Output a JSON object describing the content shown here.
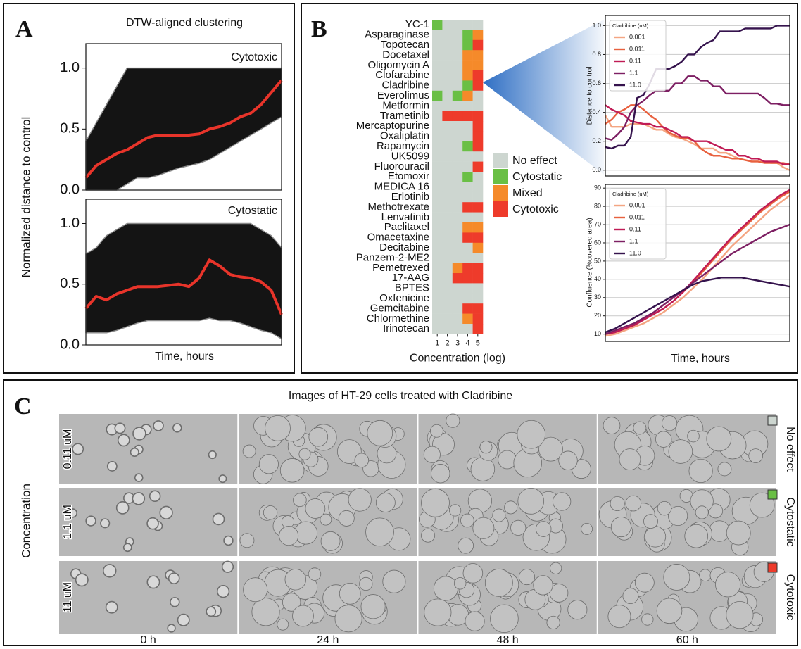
{
  "panel_labels": [
    "A",
    "B",
    "C"
  ],
  "chart_data": [
    {
      "type": "line",
      "title": "DTW-aligned clustering",
      "ylabel": "Normalized distance to control",
      "annotation": "Cytotoxic",
      "ylim": [
        0,
        1.2
      ],
      "yticks": [
        {
          "value": 0,
          "label": "0.0"
        },
        0.5,
        {
          "value": 1,
          "label": "1.0"
        }
      ],
      "color": "#e8342a",
      "values": [
        0.1,
        0.2,
        0.25,
        0.3,
        0.33,
        0.38,
        0.43,
        0.45,
        0.45,
        0.45,
        0.45,
        0.46,
        0.5,
        0.52,
        0.55,
        0.6,
        0.63,
        0.7,
        0.8,
        0.9
      ],
      "band_low": [
        0,
        0,
        0,
        0,
        0.05,
        0.1,
        0.1,
        0.12,
        0.15,
        0.18,
        0.2,
        0.22,
        0.25,
        0.3,
        0.35,
        0.4,
        0.45,
        0.5,
        0.55,
        0.6
      ],
      "band_high": [
        0.4,
        0.55,
        0.7,
        0.85,
        1,
        1,
        1,
        1,
        1,
        1,
        1,
        1,
        1,
        1,
        1,
        1,
        1,
        1,
        1,
        1
      ]
    },
    {
      "type": "line",
      "xlabel": "Time, hours",
      "annotation": "Cytostatic",
      "ylim": [
        0,
        1.2
      ],
      "yticks": [
        {
          "value": 0,
          "label": "0.0"
        },
        0.5,
        {
          "value": 1,
          "label": "1.0"
        }
      ],
      "color": "#e8342a",
      "values": [
        0.3,
        0.4,
        0.37,
        0.42,
        0.45,
        0.48,
        0.48,
        0.48,
        0.49,
        0.5,
        0.48,
        0.55,
        0.7,
        0.65,
        0.58,
        0.56,
        0.55,
        0.52,
        0.45,
        0.25
      ],
      "band_low": [
        0.1,
        0.1,
        0.1,
        0.12,
        0.15,
        0.18,
        0.2,
        0.2,
        0.2,
        0.2,
        0.2,
        0.2,
        0.22,
        0.2,
        0.2,
        0.18,
        0.15,
        0.12,
        0.1,
        0.05
      ],
      "band_high": [
        0.75,
        0.8,
        0.9,
        0.95,
        1,
        1,
        1,
        1,
        1,
        1,
        1,
        1,
        1,
        1,
        1,
        1,
        1,
        0.95,
        0.9,
        0.8
      ]
    },
    {
      "type": "heatmap",
      "xlabel": "Concentration (log)",
      "columns": [
        1,
        2,
        3,
        4,
        5
      ],
      "legend": [
        {
          "name": "No effect",
          "color": "#cdd6d0"
        },
        {
          "name": "Cytostatic",
          "color": "#6abf45"
        },
        {
          "name": "Mixed",
          "color": "#f58a2a"
        },
        {
          "name": "Cytotoxic",
          "color": "#ee3b2b"
        }
      ],
      "rows": [
        "YC-1",
        "Asparaginase",
        "Topotecan",
        "Docetaxel",
        "Oligomycin A",
        "Clofarabine",
        "Cladribine",
        "Everolimus",
        "Metformin",
        "Trametinib",
        "Mercaptopurine",
        "Oxaliplatin",
        "Rapamycin",
        "UK5099",
        "Fluorouracil",
        "Etomoxir",
        "MEDICA 16",
        "Erlotinib",
        "Methotrexate",
        "Lenvatinib",
        "Paclitaxel",
        "Omacetaxine",
        "Decitabine",
        "Panzem-2-ME2",
        "Pemetrexed",
        "17-AAG",
        "BPTES",
        "Oxfenicine",
        "Gemcitabine",
        "Chlormethine",
        "Irinotecan"
      ],
      "values": [
        [
          1,
          0,
          0,
          0,
          0
        ],
        [
          0,
          0,
          0,
          1,
          2
        ],
        [
          0,
          0,
          0,
          1,
          3
        ],
        [
          0,
          0,
          0,
          2,
          2
        ],
        [
          0,
          0,
          0,
          2,
          2
        ],
        [
          0,
          0,
          0,
          2,
          3
        ],
        [
          0,
          0,
          0,
          1,
          3
        ],
        [
          1,
          0,
          1,
          2,
          0
        ],
        [
          0,
          0,
          0,
          0,
          0
        ],
        [
          0,
          3,
          3,
          3,
          3
        ],
        [
          0,
          0,
          0,
          0,
          3
        ],
        [
          0,
          0,
          0,
          0,
          3
        ],
        [
          0,
          0,
          0,
          1,
          3
        ],
        [
          0,
          0,
          0,
          0,
          0
        ],
        [
          0,
          0,
          0,
          0,
          3
        ],
        [
          0,
          0,
          0,
          1,
          0
        ],
        [
          0,
          0,
          0,
          0,
          0
        ],
        [
          0,
          0,
          0,
          0,
          0
        ],
        [
          0,
          0,
          0,
          3,
          3
        ],
        [
          0,
          0,
          0,
          0,
          0
        ],
        [
          0,
          0,
          0,
          2,
          2
        ],
        [
          0,
          0,
          0,
          3,
          3
        ],
        [
          0,
          0,
          0,
          0,
          2
        ],
        [
          0,
          0,
          0,
          0,
          0
        ],
        [
          0,
          0,
          2,
          3,
          3
        ],
        [
          0,
          0,
          3,
          3,
          3
        ],
        [
          0,
          0,
          0,
          0,
          0
        ],
        [
          0,
          0,
          0,
          0,
          0
        ],
        [
          0,
          0,
          0,
          3,
          3
        ],
        [
          0,
          0,
          0,
          2,
          3
        ],
        [
          0,
          0,
          0,
          0,
          3
        ]
      ]
    },
    {
      "type": "line",
      "ylabel": "Distance to control",
      "legend_title": "Cladribine (uM)",
      "grid": true,
      "ylim": [
        -0.04,
        1.07
      ],
      "yticks": [
        {
          "value": 0,
          "label": "0.0"
        },
        0.2,
        0.4,
        0.6,
        0.8,
        {
          "value": 1,
          "label": "1.0"
        }
      ],
      "series": [
        {
          "name": "0.001",
          "color": "#f4a582",
          "values": [
            0.38,
            0.3,
            0.3,
            0.3,
            0.32,
            0.32,
            0.32,
            0.3,
            0.28,
            0.28,
            0.25,
            0.23,
            0.22,
            0.2,
            0.18,
            0.15,
            0.15,
            0.15,
            0.12,
            0.12,
            0.1,
            0.08,
            0.07,
            0.06,
            0.06,
            0.06,
            0.05,
            0.05,
            0.02,
            0.0
          ]
        },
        {
          "name": "0.011",
          "color": "#e8613f",
          "values": [
            0.32,
            0.35,
            0.4,
            0.42,
            0.45,
            0.45,
            0.42,
            0.38,
            0.35,
            0.3,
            0.26,
            0.24,
            0.22,
            0.22,
            0.2,
            0.15,
            0.12,
            0.1,
            0.1,
            0.09,
            0.08,
            0.08,
            0.07,
            0.06,
            0.06,
            0.05,
            0.05,
            0.05,
            0.05,
            0.04
          ]
        },
        {
          "name": "0.11",
          "color": "#c01b55",
          "values": [
            0.45,
            0.42,
            0.4,
            0.38,
            0.34,
            0.33,
            0.32,
            0.32,
            0.3,
            0.3,
            0.28,
            0.26,
            0.23,
            0.23,
            0.2,
            0.2,
            0.2,
            0.18,
            0.16,
            0.14,
            0.14,
            0.1,
            0.1,
            0.08,
            0.08,
            0.06,
            0.06,
            0.06,
            0.04,
            0.04
          ]
        },
        {
          "name": "1.1",
          "color": "#7d1f63",
          "values": [
            0.22,
            0.21,
            0.25,
            0.3,
            0.4,
            0.45,
            0.48,
            0.52,
            0.55,
            0.55,
            0.55,
            0.6,
            0.6,
            0.65,
            0.65,
            0.62,
            0.62,
            0.58,
            0.58,
            0.53,
            0.53,
            0.53,
            0.53,
            0.53,
            0.53,
            0.5,
            0.46,
            0.46,
            0.45,
            0.45
          ]
        },
        {
          "name": "11.0",
          "color": "#35134d",
          "values": [
            0.16,
            0.15,
            0.17,
            0.17,
            0.23,
            0.5,
            0.52,
            0.6,
            0.7,
            0.7,
            0.7,
            0.72,
            0.75,
            0.8,
            0.8,
            0.85,
            0.88,
            0.9,
            0.96,
            0.96,
            0.96,
            0.96,
            0.98,
            0.98,
            0.98,
            0.98,
            0.98,
            1.0,
            1.0,
            1.0
          ]
        }
      ]
    },
    {
      "type": "line",
      "ylabel": "Confluence (%covered area)",
      "xlabel": "Time, hours",
      "legend_title": "Cladribine (uM)",
      "grid": true,
      "ylim": [
        6,
        92
      ],
      "yticks": [
        10,
        20,
        30,
        40,
        50,
        60,
        70,
        80,
        90
      ],
      "series": [
        {
          "name": "0.001",
          "color": "#f4a582",
          "values": [
            9,
            10,
            12,
            14,
            16,
            19,
            22,
            26,
            30,
            35,
            40,
            46,
            52,
            58,
            63,
            68,
            73,
            78,
            82,
            86
          ]
        },
        {
          "name": "0.011",
          "color": "#e8613f",
          "values": [
            10,
            11,
            13,
            15,
            18,
            21,
            24,
            28,
            33,
            38,
            44,
            50,
            56,
            62,
            67,
            72,
            77,
            81,
            85,
            88
          ]
        },
        {
          "name": "0.11",
          "color": "#c01b55",
          "values": [
            10,
            11,
            13,
            15,
            18,
            21,
            24,
            28,
            33,
            39,
            45,
            51,
            57,
            63,
            68,
            73,
            78,
            82,
            86,
            89
          ]
        },
        {
          "name": "1.1",
          "color": "#7d1f63",
          "values": [
            10,
            12,
            14,
            16,
            19,
            22,
            26,
            30,
            34,
            38,
            42,
            46,
            50,
            54,
            57,
            60,
            63,
            66,
            68,
            70
          ]
        },
        {
          "name": "11.0",
          "color": "#35134d",
          "values": [
            11,
            13,
            16,
            19,
            22,
            25,
            28,
            31,
            34,
            37,
            39,
            40,
            41,
            41,
            41,
            40,
            39,
            38,
            37,
            36
          ]
        }
      ]
    }
  ],
  "panel_c": {
    "title": "Images of HT-29 cells treated with Cladribine",
    "ylabel": "Concentration",
    "rows": [
      {
        "label": "0.11 uM",
        "effect": "No effect"
      },
      {
        "label": "1.1 uM",
        "effect": "Cytostatic"
      },
      {
        "label": "11 uM",
        "effect": "Cytotoxic"
      }
    ],
    "columns": [
      "0 h",
      "24 h",
      "48 h",
      "60 h"
    ]
  }
}
